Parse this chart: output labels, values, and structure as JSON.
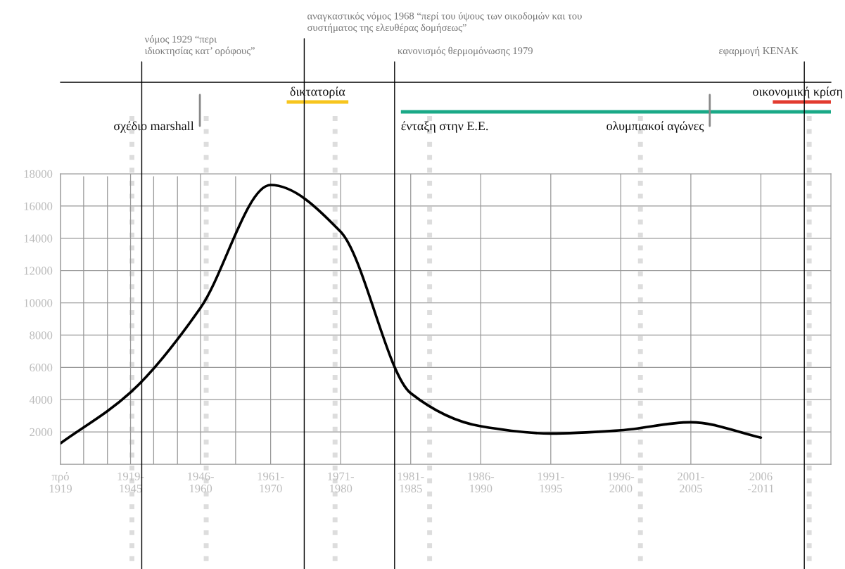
{
  "chart_data": {
    "type": "line",
    "categories": [
      "πρό\n1919",
      "1919-\n1945",
      "1946-\n1960",
      "1961-\n1970",
      "1971-\n1980",
      "1981-\n1985",
      "1986-\n1990",
      "1991-\n1995",
      "1996-\n2000",
      "2001-\n2005",
      "2006\n-2011"
    ],
    "ylim": [
      0,
      18000
    ],
    "yticks": [
      2000,
      4000,
      6000,
      8000,
      10000,
      12000,
      14000,
      16000,
      18000
    ],
    "grid": true,
    "series": [
      {
        "color": "#000000",
        "values": [
          1300,
          4450,
          9700,
          17300,
          14400,
          4400,
          2350,
          1900,
          2100,
          2600,
          1650
        ]
      }
    ],
    "annotations": [
      "νόμος 1929 “περι\nιδιοκτησίας κατ’ ορόφους”",
      "αναγκαστικός νόμος 1968 “περί του ύψους των οικοδομών και του\nσυστήματος της ελευθέρας δομήσεως”",
      "κανονισμός θερμομόνωσης 1979",
      "εφαρμογή ΚΕΝΑΚ",
      "δικτατορία",
      "οικονομική κρίση",
      "σχέδιο marshall",
      "ένταξη στην Ε.Ε.",
      "ολυμπιακοί αγώνες"
    ]
  }
}
